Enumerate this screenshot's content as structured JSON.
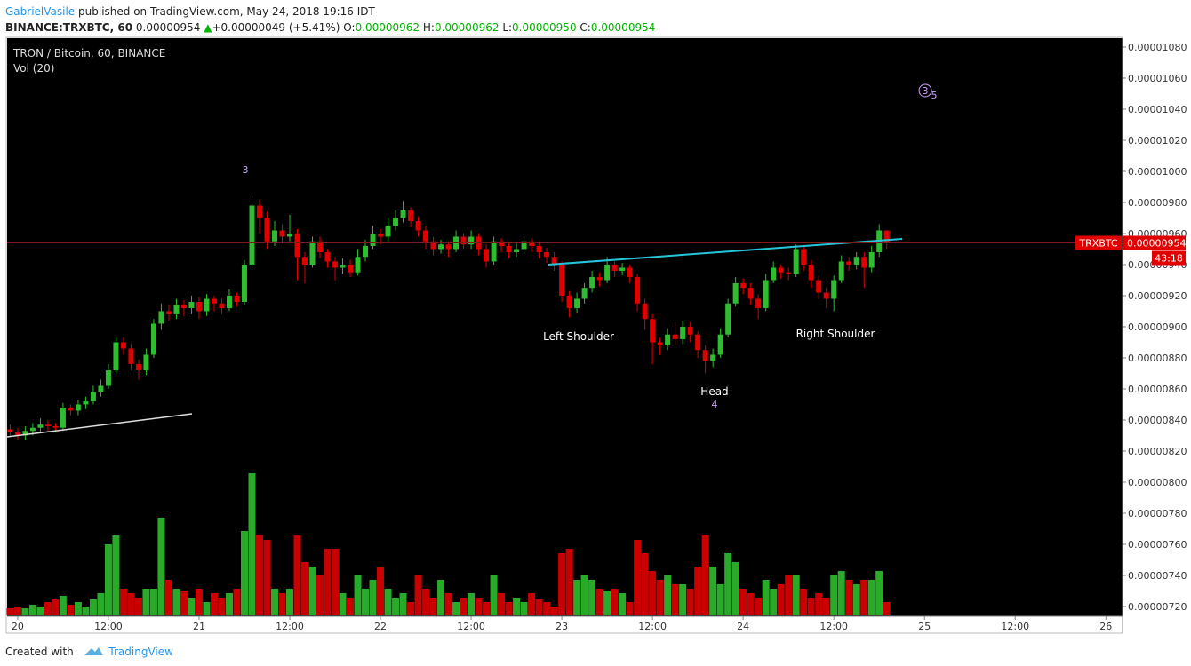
{
  "header": {
    "author": "GabrielVasile",
    "published": "published on TradingView.com, May 24, 2018 19:16 IDT"
  },
  "quote": {
    "symbol": "BINANCE:TRXBTC, 60",
    "last": "0.00000954",
    "arrow": "▲",
    "change": "+0.00000049 (+5.41%)",
    "o_label": "O:",
    "o": "0.00000962",
    "h_label": "H:",
    "h": "0.00000962",
    "l_label": "L:",
    "l": "0.00000950",
    "c_label": "C:",
    "c": "0.00000954"
  },
  "footer": {
    "created": "Created with",
    "brand": "TradingView"
  },
  "chart_data": {
    "type": "candlestick",
    "title": "TRON / Bitcoin, 60, BINANCE",
    "volume_label": "Vol (20)",
    "up_color": "#2ebd2e",
    "down_color": "#e00000",
    "grid": false,
    "xlim": [
      -1.4,
      146.2
    ],
    "xticks": [
      {
        "value": 0,
        "label": "20"
      },
      {
        "value": 12,
        "label": "12:00"
      },
      {
        "value": 24,
        "label": "21"
      },
      {
        "value": 36,
        "label": "12:00"
      },
      {
        "value": 48,
        "label": "22"
      },
      {
        "value": 60,
        "label": "12:00"
      },
      {
        "value": 72,
        "label": "23"
      },
      {
        "value": 84,
        "label": "12:00"
      },
      {
        "value": 96,
        "label": "24"
      },
      {
        "value": 108,
        "label": "12:00"
      },
      {
        "value": 120,
        "label": "25"
      },
      {
        "value": 132,
        "label": "12:00"
      },
      {
        "value": 144,
        "label": "26"
      }
    ],
    "ylim": [
      7.137e-06,
      1.0857e-05
    ],
    "yticks": [
      {
        "value": 7.2e-06,
        "label": "0.00000720"
      },
      {
        "value": 7.4e-06,
        "label": "0.00000740"
      },
      {
        "value": 7.6e-06,
        "label": "0.00000760"
      },
      {
        "value": 7.8e-06,
        "label": "0.00000780"
      },
      {
        "value": 8e-06,
        "label": "0.00000800"
      },
      {
        "value": 8.2e-06,
        "label": "0.00000820"
      },
      {
        "value": 8.4e-06,
        "label": "0.00000840"
      },
      {
        "value": 8.6e-06,
        "label": "0.00000860"
      },
      {
        "value": 8.8e-06,
        "label": "0.00000880"
      },
      {
        "value": 9e-06,
        "label": "0.00000900"
      },
      {
        "value": 9.2e-06,
        "label": "0.00000920"
      },
      {
        "value": 9.4e-06,
        "label": "0.00000940"
      },
      {
        "value": 9.6e-06,
        "label": "0.00000960"
      },
      {
        "value": 9.8e-06,
        "label": "0.00000980"
      },
      {
        "value": 1e-05,
        "label": "0.00001000"
      },
      {
        "value": 1.02e-05,
        "label": "0.00001020"
      },
      {
        "value": 1.04e-05,
        "label": "0.00001040"
      },
      {
        "value": 1.06e-05,
        "label": "0.00001060"
      },
      {
        "value": 1.08e-05,
        "label": "0.00001080"
      }
    ],
    "price_tag": {
      "symbol": "TRXBTC",
      "value": 9.54e-06,
      "label": "0.00000954",
      "countdown": "43:18"
    },
    "annotations": [
      "3",
      "Left Shoulder",
      "Head",
      "4",
      "Right Shoulder",
      "3",
      "5"
    ],
    "volume_lim": [
      0,
      180
    ],
    "x": [
      -1,
      0,
      1,
      2,
      3,
      4,
      5,
      6,
      7,
      8,
      9,
      10,
      11,
      12,
      13,
      14,
      15,
      16,
      17,
      18,
      19,
      20,
      21,
      22,
      23,
      24,
      25,
      26,
      27,
      28,
      29,
      30,
      31,
      32,
      33,
      34,
      35,
      36,
      37,
      38,
      39,
      40,
      41,
      42,
      43,
      44,
      45,
      46,
      47,
      48,
      49,
      50,
      51,
      52,
      53,
      54,
      55,
      56,
      57,
      58,
      59,
      60,
      61,
      62,
      63,
      64,
      65,
      66,
      67,
      68,
      69,
      70,
      71,
      72,
      73,
      74,
      75,
      76,
      77,
      78,
      79,
      80,
      81,
      82,
      83,
      84,
      85,
      86,
      87,
      88,
      89,
      90,
      91,
      92,
      93,
      94,
      95,
      96,
      97,
      98,
      99,
      100,
      101,
      102,
      103,
      104,
      105,
      106,
      107,
      108,
      109,
      110,
      111,
      112,
      113,
      114,
      115
    ],
    "candles": [
      [
        8.34e-06,
        8.37e-06,
        8.29e-06,
        8.32e-06
      ],
      [
        8.32e-06,
        8.35e-06,
        8.27e-06,
        8.3e-06
      ],
      [
        8.3e-06,
        8.36e-06,
        8.27e-06,
        8.33e-06
      ],
      [
        8.33e-06,
        8.38e-06,
        8.3e-06,
        8.35e-06
      ],
      [
        8.35e-06,
        8.41e-06,
        8.32e-06,
        8.37e-06
      ],
      [
        8.37e-06,
        8.4e-06,
        8.33e-06,
        8.36e-06
      ],
      [
        8.36e-06,
        8.38e-06,
        8.32e-06,
        8.35e-06
      ],
      [
        8.35e-06,
        8.51e-06,
        8.33e-06,
        8.48e-06
      ],
      [
        8.48e-06,
        8.5e-06,
        8.43e-06,
        8.46e-06
      ],
      [
        8.46e-06,
        8.53e-06,
        8.43e-06,
        8.5e-06
      ],
      [
        8.5e-06,
        8.55e-06,
        8.47e-06,
        8.52e-06
      ],
      [
        8.52e-06,
        8.62e-06,
        8.5e-06,
        8.58e-06
      ],
      [
        8.58e-06,
        8.66e-06,
        8.55e-06,
        8.62e-06
      ],
      [
        8.62e-06,
        8.76e-06,
        8.6e-06,
        8.72e-06
      ],
      [
        8.72e-06,
        8.93e-06,
        8.7e-06,
        8.9e-06
      ],
      [
        8.9e-06,
        8.93e-06,
        8.82e-06,
        8.86e-06
      ],
      [
        8.86e-06,
        8.89e-06,
        8.72e-06,
        8.76e-06
      ],
      [
        8.76e-06,
        8.79e-06,
        8.66e-06,
        8.72e-06
      ],
      [
        8.72e-06,
        8.86e-06,
        8.69e-06,
        8.82e-06
      ],
      [
        8.82e-06,
        9.05e-06,
        8.8e-06,
        9.02e-06
      ],
      [
        9.02e-06,
        9.15e-06,
        8.98e-06,
        9.1e-06
      ],
      [
        9.1e-06,
        9.14e-06,
        9.04e-06,
        9.08e-06
      ],
      [
        9.08e-06,
        9.18e-06,
        9.05e-06,
        9.14e-06
      ],
      [
        9.14e-06,
        9.17e-06,
        9.07e-06,
        9.12e-06
      ],
      [
        9.12e-06,
        9.2e-06,
        9.08e-06,
        9.16e-06
      ],
      [
        9.16e-06,
        9.19e-06,
        9.05e-06,
        9.1e-06
      ],
      [
        9.1e-06,
        9.21e-06,
        9.07e-06,
        9.18e-06
      ],
      [
        9.18e-06,
        9.2e-06,
        9.1e-06,
        9.15e-06
      ],
      [
        9.15e-06,
        9.18e-06,
        9.08e-06,
        9.12e-06
      ],
      [
        9.12e-06,
        9.24e-06,
        9.1e-06,
        9.2e-06
      ],
      [
        9.2e-06,
        9.22e-06,
        9.13e-06,
        9.16e-06
      ],
      [
        9.16e-06,
        9.43e-06,
        9.14e-06,
        9.4e-06
      ],
      [
        9.4e-06,
        9.86e-06,
        9.38e-06,
        9.78e-06
      ],
      [
        9.78e-06,
        9.82e-06,
        9.6e-06,
        9.7e-06
      ],
      [
        9.7e-06,
        9.74e-06,
        9.5e-06,
        9.55e-06
      ],
      [
        9.55e-06,
        9.68e-06,
        9.52e-06,
        9.62e-06
      ],
      [
        9.62e-06,
        9.66e-06,
        9.54e-06,
        9.58e-06
      ],
      [
        9.58e-06,
        9.72e-06,
        9.55e-06,
        9.6e-06
      ],
      [
        9.6e-06,
        9.63e-06,
        9.3e-06,
        9.45e-06
      ],
      [
        9.45e-06,
        9.48e-06,
        9.28e-06,
        9.4e-06
      ],
      [
        9.4e-06,
        9.58e-06,
        9.38e-06,
        9.55e-06
      ],
      [
        9.55e-06,
        9.58e-06,
        9.44e-06,
        9.48e-06
      ],
      [
        9.48e-06,
        9.5e-06,
        9.38e-06,
        9.42e-06
      ],
      [
        9.42e-06,
        9.45e-06,
        9.3e-06,
        9.38e-06
      ],
      [
        9.38e-06,
        9.44e-06,
        9.34e-06,
        9.4e-06
      ],
      [
        9.4e-06,
        9.43e-06,
        9.32e-06,
        9.35e-06
      ],
      [
        9.35e-06,
        9.5e-06,
        9.33e-06,
        9.45e-06
      ],
      [
        9.45e-06,
        9.56e-06,
        9.42e-06,
        9.52e-06
      ],
      [
        9.52e-06,
        9.65e-06,
        9.5e-06,
        9.6e-06
      ],
      [
        9.6e-06,
        9.63e-06,
        9.53e-06,
        9.58e-06
      ],
      [
        9.58e-06,
        9.7e-06,
        9.55e-06,
        9.65e-06
      ],
      [
        9.65e-06,
        9.75e-06,
        9.62e-06,
        9.7e-06
      ],
      [
        9.7e-06,
        9.81e-06,
        9.67e-06,
        9.75e-06
      ],
      [
        9.75e-06,
        9.77e-06,
        9.64e-06,
        9.68e-06
      ],
      [
        9.68e-06,
        9.71e-06,
        9.58e-06,
        9.62e-06
      ],
      [
        9.62e-06,
        9.65e-06,
        9.5e-06,
        9.55e-06
      ],
      [
        9.55e-06,
        9.58e-06,
        9.46e-06,
        9.5e-06
      ],
      [
        9.5e-06,
        9.56e-06,
        9.47e-06,
        9.53e-06
      ],
      [
        9.53e-06,
        9.55e-06,
        9.45e-06,
        9.5e-06
      ],
      [
        9.5e-06,
        9.62e-06,
        9.48e-06,
        9.58e-06
      ],
      [
        9.58e-06,
        9.6e-06,
        9.5e-06,
        9.53e-06
      ],
      [
        9.53e-06,
        9.62e-06,
        9.5e-06,
        9.58e-06
      ],
      [
        9.58e-06,
        9.6e-06,
        9.46e-06,
        9.5e-06
      ],
      [
        9.5e-06,
        9.53e-06,
        9.38e-06,
        9.42e-06
      ],
      [
        9.42e-06,
        9.58e-06,
        9.4e-06,
        9.55e-06
      ],
      [
        9.55e-06,
        9.57e-06,
        9.48e-06,
        9.52e-06
      ],
      [
        9.52e-06,
        9.55e-06,
        9.44e-06,
        9.48e-06
      ],
      [
        9.48e-06,
        9.54e-06,
        9.45e-06,
        9.5e-06
      ],
      [
        9.5e-06,
        9.58e-06,
        9.47e-06,
        9.55e-06
      ],
      [
        9.55e-06,
        9.57e-06,
        9.48e-06,
        9.52e-06
      ],
      [
        9.52e-06,
        9.55e-06,
        9.44e-06,
        9.48e-06
      ],
      [
        9.48e-06,
        9.51e-06,
        9.41e-06,
        9.45e-06
      ],
      [
        9.45e-06,
        9.48e-06,
        9.36e-06,
        9.4e-06
      ],
      [
        9.4e-06,
        9.42e-06,
        9.16e-06,
        9.2e-06
      ],
      [
        9.2e-06,
        9.23e-06,
        9.06e-06,
        9.12e-06
      ],
      [
        9.12e-06,
        9.22e-06,
        9.09e-06,
        9.18e-06
      ],
      [
        9.18e-06,
        9.28e-06,
        9.15e-06,
        9.25e-06
      ],
      [
        9.25e-06,
        9.36e-06,
        9.22e-06,
        9.32e-06
      ],
      [
        9.32e-06,
        9.35e-06,
        9.26e-06,
        9.3e-06
      ],
      [
        9.3e-06,
        9.45e-06,
        9.28e-06,
        9.4e-06
      ],
      [
        9.4e-06,
        9.42e-06,
        9.32e-06,
        9.36e-06
      ],
      [
        9.36e-06,
        9.41e-06,
        9.33e-06,
        9.38e-06
      ],
      [
        9.38e-06,
        9.4e-06,
        9.28e-06,
        9.32e-06
      ],
      [
        9.32e-06,
        9.34e-06,
        9.1e-06,
        9.15e-06
      ],
      [
        9.15e-06,
        9.18e-06,
        8.98e-06,
        9.05e-06
      ],
      [
        9.05e-06,
        9.08e-06,
        8.76e-06,
        8.9e-06
      ],
      [
        8.9e-06,
        8.93e-06,
        8.82e-06,
        8.88e-06
      ],
      [
        8.88e-06,
        8.99e-06,
        8.85e-06,
        8.95e-06
      ],
      [
        8.95e-06,
        9.03e-06,
        8.88e-06,
        8.92e-06
      ],
      [
        8.92e-06,
        9.04e-06,
        8.89e-06,
        9e-06
      ],
      [
        9e-06,
        9.03e-06,
        8.9e-06,
        8.95e-06
      ],
      [
        8.95e-06,
        8.97e-06,
        8.8e-06,
        8.85e-06
      ],
      [
        8.85e-06,
        8.88e-06,
        8.7e-06,
        8.78e-06
      ],
      [
        8.78e-06,
        8.86e-06,
        8.74e-06,
        8.82e-06
      ],
      [
        8.82e-06,
        8.99e-06,
        8.8e-06,
        8.95e-06
      ],
      [
        8.95e-06,
        9.18e-06,
        8.93e-06,
        9.15e-06
      ],
      [
        9.15e-06,
        9.32e-06,
        9.13e-06,
        9.28e-06
      ],
      [
        9.28e-06,
        9.31e-06,
        9.21e-06,
        9.25e-06
      ],
      [
        9.25e-06,
        9.28e-06,
        9.14e-06,
        9.18e-06
      ],
      [
        9.18e-06,
        9.21e-06,
        9.05e-06,
        9.12e-06
      ],
      [
        9.12e-06,
        9.34e-06,
        9.1e-06,
        9.3e-06
      ],
      [
        9.3e-06,
        9.42e-06,
        9.28e-06,
        9.38e-06
      ],
      [
        9.38e-06,
        9.4e-06,
        9.31e-06,
        9.35e-06
      ],
      [
        9.35e-06,
        9.38e-06,
        9.3e-06,
        9.34e-06
      ],
      [
        9.34e-06,
        9.53e-06,
        9.32e-06,
        9.5e-06
      ],
      [
        9.5e-06,
        9.52e-06,
        9.36e-06,
        9.4e-06
      ],
      [
        9.4e-06,
        9.43e-06,
        9.25e-06,
        9.3e-06
      ],
      [
        9.3e-06,
        9.33e-06,
        9.18e-06,
        9.22e-06
      ],
      [
        9.22e-06,
        9.25e-06,
        9.12e-06,
        9.18e-06
      ],
      [
        9.18e-06,
        9.33e-06,
        9.1e-06,
        9.3e-06
      ],
      [
        9.3e-06,
        9.46e-06,
        9.28e-06,
        9.42e-06
      ],
      [
        9.42e-06,
        9.45e-06,
        9.36e-06,
        9.4e-06
      ],
      [
        9.4e-06,
        9.48e-06,
        9.37e-06,
        9.45e-06
      ],
      [
        9.45e-06,
        9.48e-06,
        9.25e-06,
        9.38e-06
      ],
      [
        9.38e-06,
        9.52e-06,
        9.35e-06,
        9.48e-06
      ],
      [
        9.48e-06,
        9.66e-06,
        9.45e-06,
        9.62e-06
      ],
      [
        9.62e-06,
        9.62e-06,
        9.5e-06,
        9.54e-06
      ]
    ],
    "volume": [
      8,
      10,
      8,
      12,
      10,
      15,
      18,
      22,
      12,
      15,
      10,
      18,
      25,
      80,
      90,
      30,
      25,
      20,
      30,
      30,
      110,
      40,
      30,
      28,
      20,
      30,
      15,
      25,
      20,
      25,
      30,
      95,
      160,
      90,
      85,
      30,
      25,
      30,
      90,
      60,
      55,
      45,
      75,
      75,
      25,
      20,
      45,
      30,
      40,
      55,
      30,
      20,
      25,
      15,
      45,
      30,
      20,
      40,
      25,
      15,
      20,
      25,
      20,
      15,
      45,
      25,
      15,
      20,
      15,
      25,
      18,
      15,
      10,
      70,
      75,
      40,
      45,
      40,
      30,
      28,
      30,
      25,
      15,
      85,
      70,
      50,
      40,
      45,
      35,
      35,
      30,
      55,
      90,
      55,
      35,
      70,
      60,
      30,
      25,
      20,
      40,
      30,
      35,
      45,
      45,
      30,
      20,
      25,
      20,
      45,
      50,
      40,
      35,
      40,
      40,
      50,
      15
    ]
  }
}
